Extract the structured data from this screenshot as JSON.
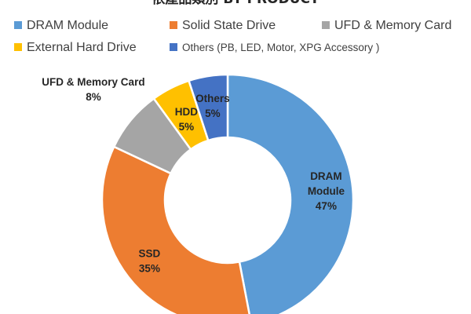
{
  "chart_data": {
    "type": "pie",
    "title": "依產品類別 BY PRODUCT",
    "hole": true,
    "legend_position": "top",
    "slices": [
      {
        "name": "DRAM Module",
        "label_lines": [
          "DRAM",
          "Module"
        ],
        "value": 47,
        "value_label": "47%",
        "color": "#5B9BD5",
        "label_color": "#262626"
      },
      {
        "name": "Solid State Drive",
        "label_lines": [
          "SSD"
        ],
        "value": 35,
        "value_label": "35%",
        "color": "#ED7D31",
        "label_color": "#262626"
      },
      {
        "name": "UFD & Memory Card",
        "label_lines": [
          "UFD & Memory Card"
        ],
        "value": 8,
        "value_label": "8%",
        "color": "#A5A5A5",
        "label_color": "#262626"
      },
      {
        "name": "External Hard Drive",
        "label_lines": [
          "HDD"
        ],
        "value": 5,
        "value_label": "5%",
        "color": "#FFC000",
        "label_color": "#262626"
      },
      {
        "name": "Others (PB, LED, Motor, XPG Accessory )",
        "label_lines": [
          "Others"
        ],
        "value": 5,
        "value_label": "5%",
        "color": "#4472C4",
        "label_color": "#262626"
      }
    ]
  }
}
